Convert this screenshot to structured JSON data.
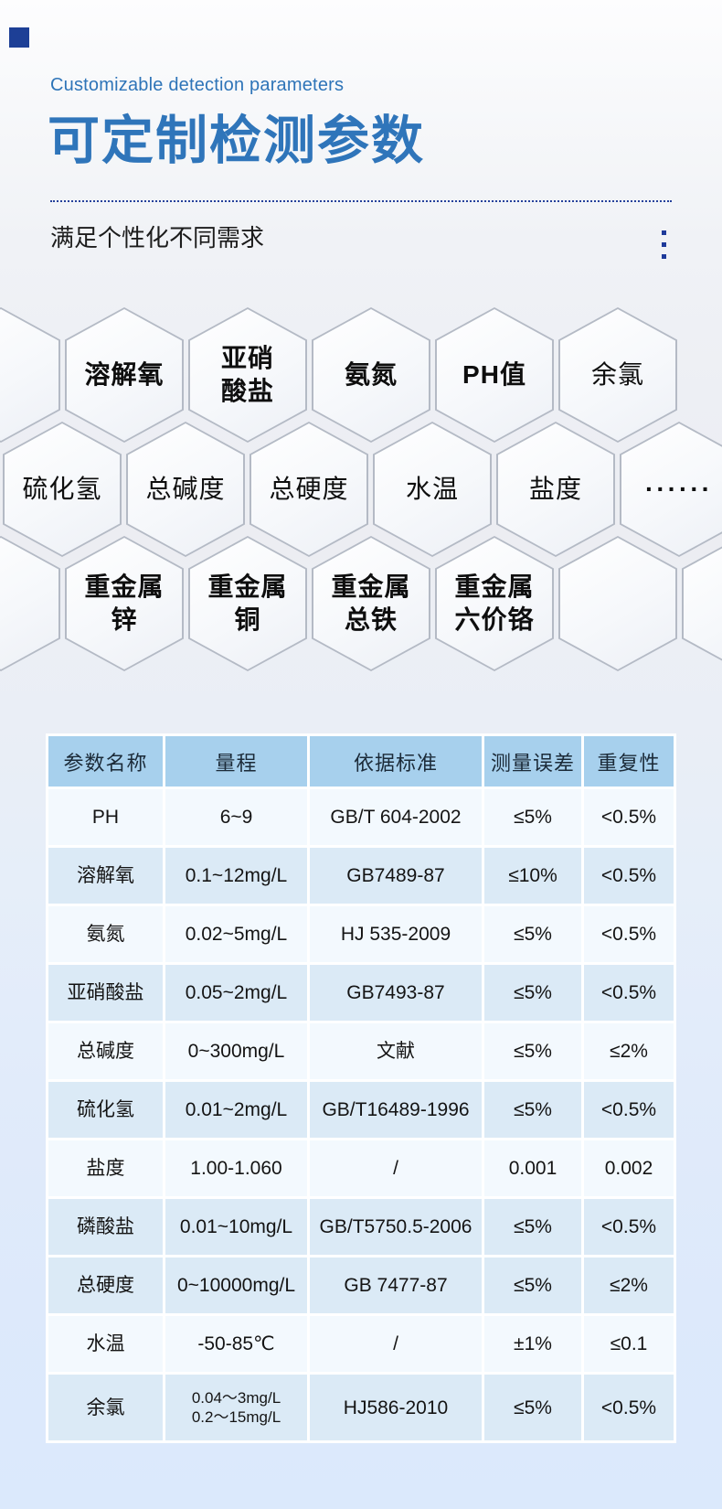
{
  "header": {
    "eyebrow": "Customizable detection parameters",
    "title": "可定制检测参数",
    "tagline": "满足个性化不同需求",
    "accent_color": "#2e74b8",
    "dotted_line_color": "#25419b",
    "corner_square_color": "#1d3f96",
    "ellipsis_dot_count": 3
  },
  "hexagons": {
    "border_color": "#b4bac5",
    "cells": [
      {
        "row": 1,
        "col": 0,
        "label": "",
        "bold": false
      },
      {
        "row": 1,
        "col": 1,
        "label": "溶解氧",
        "bold": true
      },
      {
        "row": 1,
        "col": 2,
        "label": "亚硝\n酸盐",
        "bold": true
      },
      {
        "row": 1,
        "col": 3,
        "label": "氨氮",
        "bold": true
      },
      {
        "row": 1,
        "col": 4,
        "label": "PH值",
        "bold": true
      },
      {
        "row": 1,
        "col": 5,
        "label": "余氯",
        "bold": false
      },
      {
        "row": 2,
        "col": 0,
        "label": "硫化氢",
        "bold": false
      },
      {
        "row": 2,
        "col": 1,
        "label": "总碱度",
        "bold": false
      },
      {
        "row": 2,
        "col": 2,
        "label": "总硬度",
        "bold": false
      },
      {
        "row": 2,
        "col": 3,
        "label": "水温",
        "bold": false
      },
      {
        "row": 2,
        "col": 4,
        "label": "盐度",
        "bold": false
      },
      {
        "row": 2,
        "col": 5,
        "label": "······",
        "bold": true
      },
      {
        "row": 3,
        "col": 0,
        "label": "",
        "bold": false
      },
      {
        "row": 3,
        "col": 1,
        "label": "重金属\n锌",
        "bold": true
      },
      {
        "row": 3,
        "col": 2,
        "label": "重金属\n铜",
        "bold": true
      },
      {
        "row": 3,
        "col": 3,
        "label": "重金属\n总铁",
        "bold": true
      },
      {
        "row": 3,
        "col": 4,
        "label": "重金属\n六价铬",
        "bold": true
      },
      {
        "row": 3,
        "col": 5,
        "label": "",
        "bold": false
      },
      {
        "row": 3,
        "col": 6,
        "label": "",
        "bold": false
      }
    ]
  },
  "table": {
    "header_bg": "#a7d0ed",
    "row_light_bg": "#f3f9fe",
    "row_dark_bg": "#dbeaf6",
    "headers": [
      "参数名称",
      "量程",
      "依据标准",
      "测量误差",
      "重复性"
    ],
    "rows": [
      {
        "shade": "light",
        "cells": [
          "PH",
          "6~9",
          "GB/T 604-2002",
          "≤5%",
          "<0.5%"
        ]
      },
      {
        "shade": "dark",
        "cells": [
          "溶解氧",
          "0.1~12mg/L",
          "GB7489-87",
          "≤10%",
          "<0.5%"
        ]
      },
      {
        "shade": "light",
        "cells": [
          "氨氮",
          "0.02~5mg/L",
          "HJ 535-2009",
          "≤5%",
          "<0.5%"
        ]
      },
      {
        "shade": "dark",
        "cells": [
          "亚硝酸盐",
          "0.05~2mg/L",
          "GB7493-87",
          "≤5%",
          "<0.5%"
        ]
      },
      {
        "shade": "light",
        "cells": [
          "总碱度",
          "0~300mg/L",
          "文献",
          "≤5%",
          "≤2%"
        ]
      },
      {
        "shade": "dark",
        "cells": [
          "硫化氢",
          "0.01~2mg/L",
          "GB/T16489-1996",
          "≤5%",
          "<0.5%"
        ]
      },
      {
        "shade": "light",
        "cells": [
          "盐度",
          "1.00-1.060",
          "/",
          "0.001",
          "0.002"
        ]
      },
      {
        "shade": "dark",
        "cells": [
          "磷酸盐",
          "0.01~10mg/L",
          "GB/T5750.5-2006",
          "≤5%",
          "<0.5%"
        ]
      },
      {
        "shade": "dark",
        "cells": [
          "总硬度",
          "0~10000mg/L",
          "GB 7477-87",
          "≤5%",
          "≤2%"
        ]
      },
      {
        "shade": "light",
        "cells": [
          "水温",
          "-50-85℃",
          "/",
          "±1%",
          "≤0.1"
        ]
      },
      {
        "shade": "dark",
        "tall": true,
        "cells": [
          "余氯",
          "0.04～3mg/L\n0.2～15mg/L",
          "HJ586-2010",
          "≤5%",
          "<0.5%"
        ]
      }
    ]
  }
}
